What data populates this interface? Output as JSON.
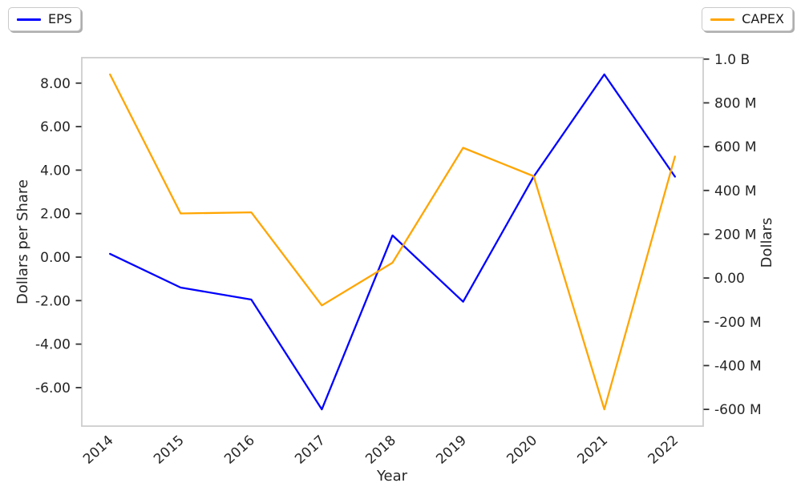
{
  "figure": {
    "background": "#ffffff",
    "text_color": "#262626",
    "spine_color": "#cdcdcd"
  },
  "legend": {
    "left": {
      "label": "EPS",
      "color": "#0000ff"
    },
    "right": {
      "label": "CAPEX",
      "color": "#ffa500"
    }
  },
  "chart_data": {
    "type": "line",
    "title": "",
    "xlabel": "Year",
    "ylabel_left": "Dollars per Share",
    "ylabel_right": "Dollars",
    "grid": false,
    "legend_positions": [
      "upper left",
      "upper right"
    ],
    "categories": [
      "2014",
      "2015",
      "2016",
      "2017",
      "2018",
      "2019",
      "2020",
      "2021",
      "2022"
    ],
    "series": [
      {
        "name": "EPS",
        "axis": "left",
        "color": "#0000ff",
        "unit": "dollars per share",
        "values": [
          0.15,
          -1.4,
          -1.95,
          -7.0,
          1.0,
          -2.05,
          3.7,
          8.4,
          3.7
        ]
      },
      {
        "name": "CAPEX",
        "axis": "right",
        "color": "#ffa500",
        "unit": "dollars (millions)",
        "values": [
          930,
          295,
          300,
          -125,
          70,
          595,
          465,
          -600,
          555
        ]
      }
    ],
    "left_axis": {
      "tick_labels": [
        "8.00",
        "6.00",
        "4.00",
        "2.00",
        "0.00",
        "-2.00",
        "-4.00",
        "-6.00"
      ],
      "tick_values": [
        8,
        6,
        4,
        2,
        0,
        -2,
        -4,
        -6
      ],
      "range": [
        -7.77,
        9.17
      ]
    },
    "right_axis": {
      "tick_labels": [
        "1.0 B",
        "800 M",
        "600 M",
        "400 M",
        "200 M",
        "0.00",
        "-200 M",
        "-400 M",
        "-600 M"
      ],
      "tick_values_millions": [
        1000,
        800,
        600,
        400,
        200,
        0,
        -200,
        -400,
        -600
      ],
      "range_millions": [
        -676.5,
        1006.5
      ]
    },
    "x_range": [
      -0.4,
      8.4
    ]
  }
}
